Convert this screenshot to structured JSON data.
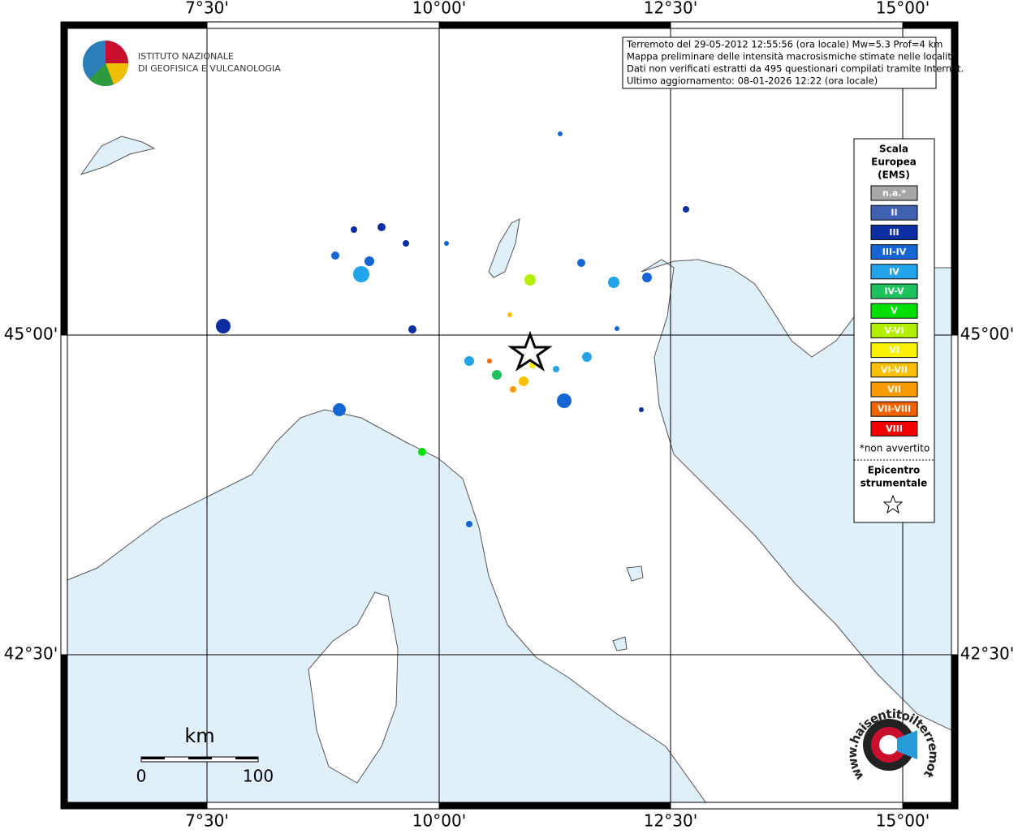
{
  "map": {
    "lon_labels": [
      "7°30'",
      "10°00'",
      "12°30'",
      "15°00'"
    ],
    "lat_labels": [
      "45°00'",
      "42°30'"
    ],
    "info": [
      "Terremoto del 29-05-2012 12:55:56 (ora locale) Mw=5.3 Prof=4 km",
      "Mappa preliminare delle intensità macrosismiche stimate nelle località",
      "Dati non verificati estratti da 495 questionari compilati tramite Internet.",
      "Ultimo aggiornamento: 08-01-2026 12:22 (ora locale)"
    ],
    "institute": [
      "ISTITUTO NAZIONALE",
      "DI GEOFISICA E VULCANOLOGIA"
    ],
    "legend": {
      "title": [
        "Scala",
        "Europea",
        "(EMS)"
      ],
      "items": [
        {
          "label": "n.a.*",
          "color": "#a6a6a6"
        },
        {
          "label": "II",
          "color": "#4161b3"
        },
        {
          "label": "III",
          "color": "#0b2ea3"
        },
        {
          "label": "III-IV",
          "color": "#1566d4"
        },
        {
          "label": "IV",
          "color": "#22a3ea"
        },
        {
          "label": "IV-V",
          "color": "#1fc05e"
        },
        {
          "label": "V",
          "color": "#00e000"
        },
        {
          "label": "V-VI",
          "color": "#b3ef00"
        },
        {
          "label": "VI",
          "color": "#f7f000"
        },
        {
          "label": "VI-VII",
          "color": "#f8c000"
        },
        {
          "label": "VII",
          "color": "#f89a00"
        },
        {
          "label": "VII-VIII",
          "color": "#f06400"
        },
        {
          "label": "VIII",
          "color": "#f00000"
        }
      ],
      "note": "*non avvertito",
      "epicenter_title": [
        "Epicentro",
        "strumentale"
      ]
    },
    "scale_bar": {
      "unit": "km",
      "labels": [
        "0",
        "100"
      ]
    },
    "site_logo": "www.haisentitoilterremoto.it"
  }
}
